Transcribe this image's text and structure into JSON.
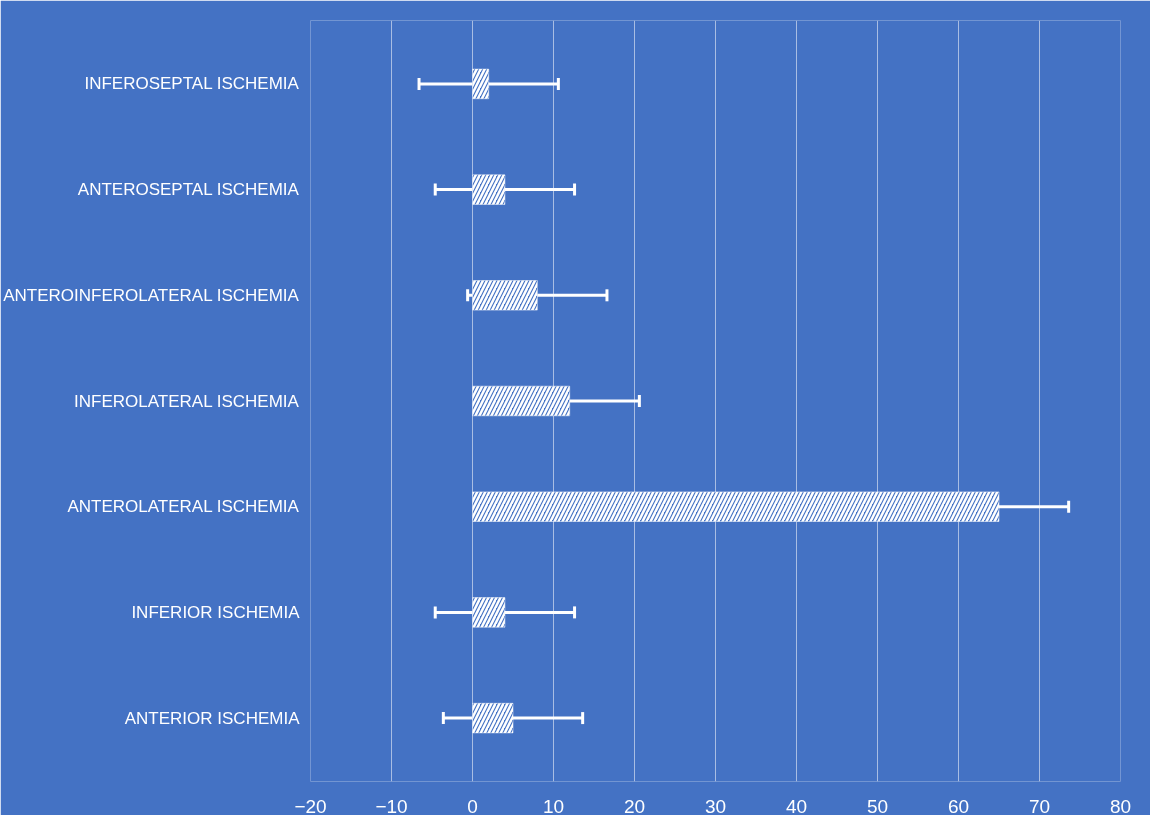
{
  "chart_data": {
    "type": "bar",
    "orientation": "horizontal",
    "categories": [
      "INFEROSEPTAL ISCHEMIA",
      "ANTEROSEPTAL ISCHEMIA",
      "ANTEROINFEROLATERAL ISCHEMIA",
      "INFEROLATERAL ISCHEMIA",
      "ANTEROLATERAL ISCHEMIA",
      "INFERIOR ISCHEMIA",
      "ANTERIOR ISCHEMIA"
    ],
    "values": [
      2,
      4,
      8,
      12,
      65,
      4,
      5
    ],
    "errors": [
      8.6,
      8.6,
      8.6,
      8.6,
      8.6,
      8.6,
      8.6
    ],
    "color": "#ffffff",
    "xlim": [
      -20,
      80
    ],
    "xticks": [
      -20,
      -10,
      0,
      10,
      20,
      30,
      40,
      50,
      60,
      70,
      80
    ],
    "grid": "x"
  }
}
